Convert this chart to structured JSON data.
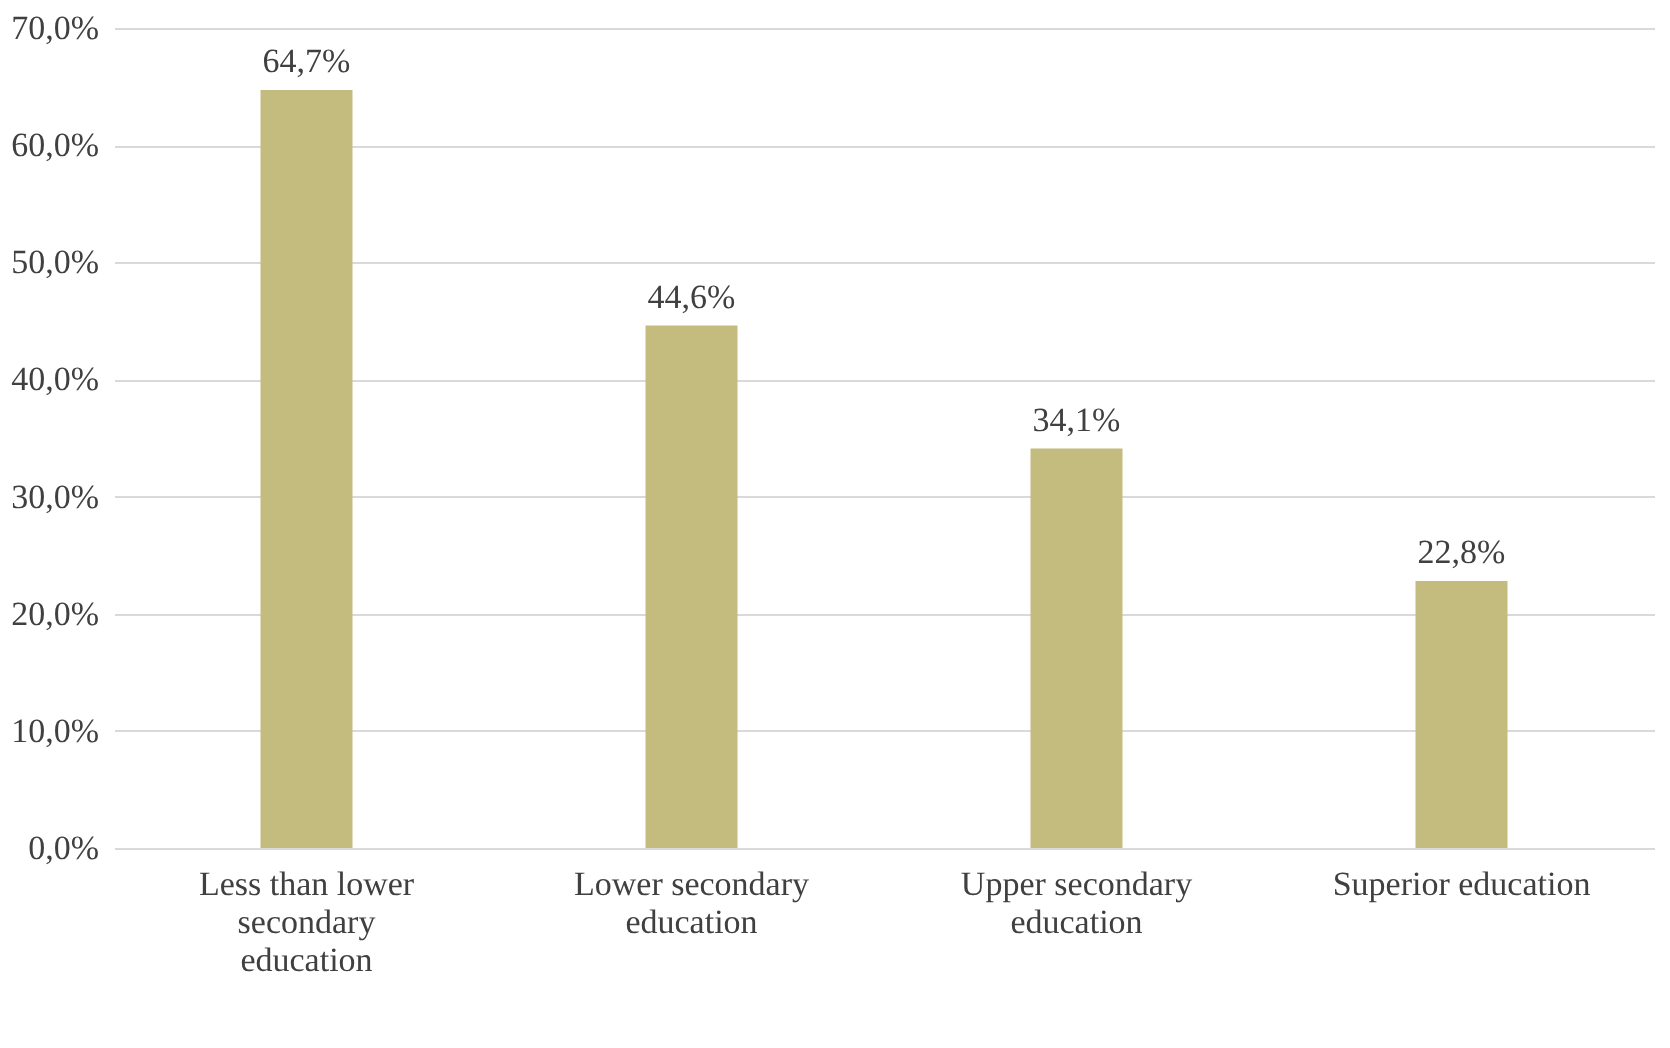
{
  "chart_data": {
    "type": "bar",
    "categories": [
      "Less than lower secondary education",
      "Lower secondary education",
      "Upper secondary education",
      "Superior education"
    ],
    "values": [
      64.7,
      44.6,
      34.1,
      22.8
    ],
    "value_labels": [
      "64,7%",
      "44,6%",
      "34,1%",
      "22,8%"
    ],
    "color": "#c4bc7e",
    "ylim": [
      0,
      70
    ],
    "yticks": [
      {
        "value": 0,
        "label": "0,0%"
      },
      {
        "value": 10,
        "label": "10,0%"
      },
      {
        "value": 20,
        "label": "20,0%"
      },
      {
        "value": 30,
        "label": "30,0%"
      },
      {
        "value": 40,
        "label": "40,0%"
      },
      {
        "value": 50,
        "label": "50,0%"
      },
      {
        "value": 60,
        "label": "60,0%"
      },
      {
        "value": 70,
        "label": "70,0%"
      }
    ],
    "grid": "y"
  }
}
